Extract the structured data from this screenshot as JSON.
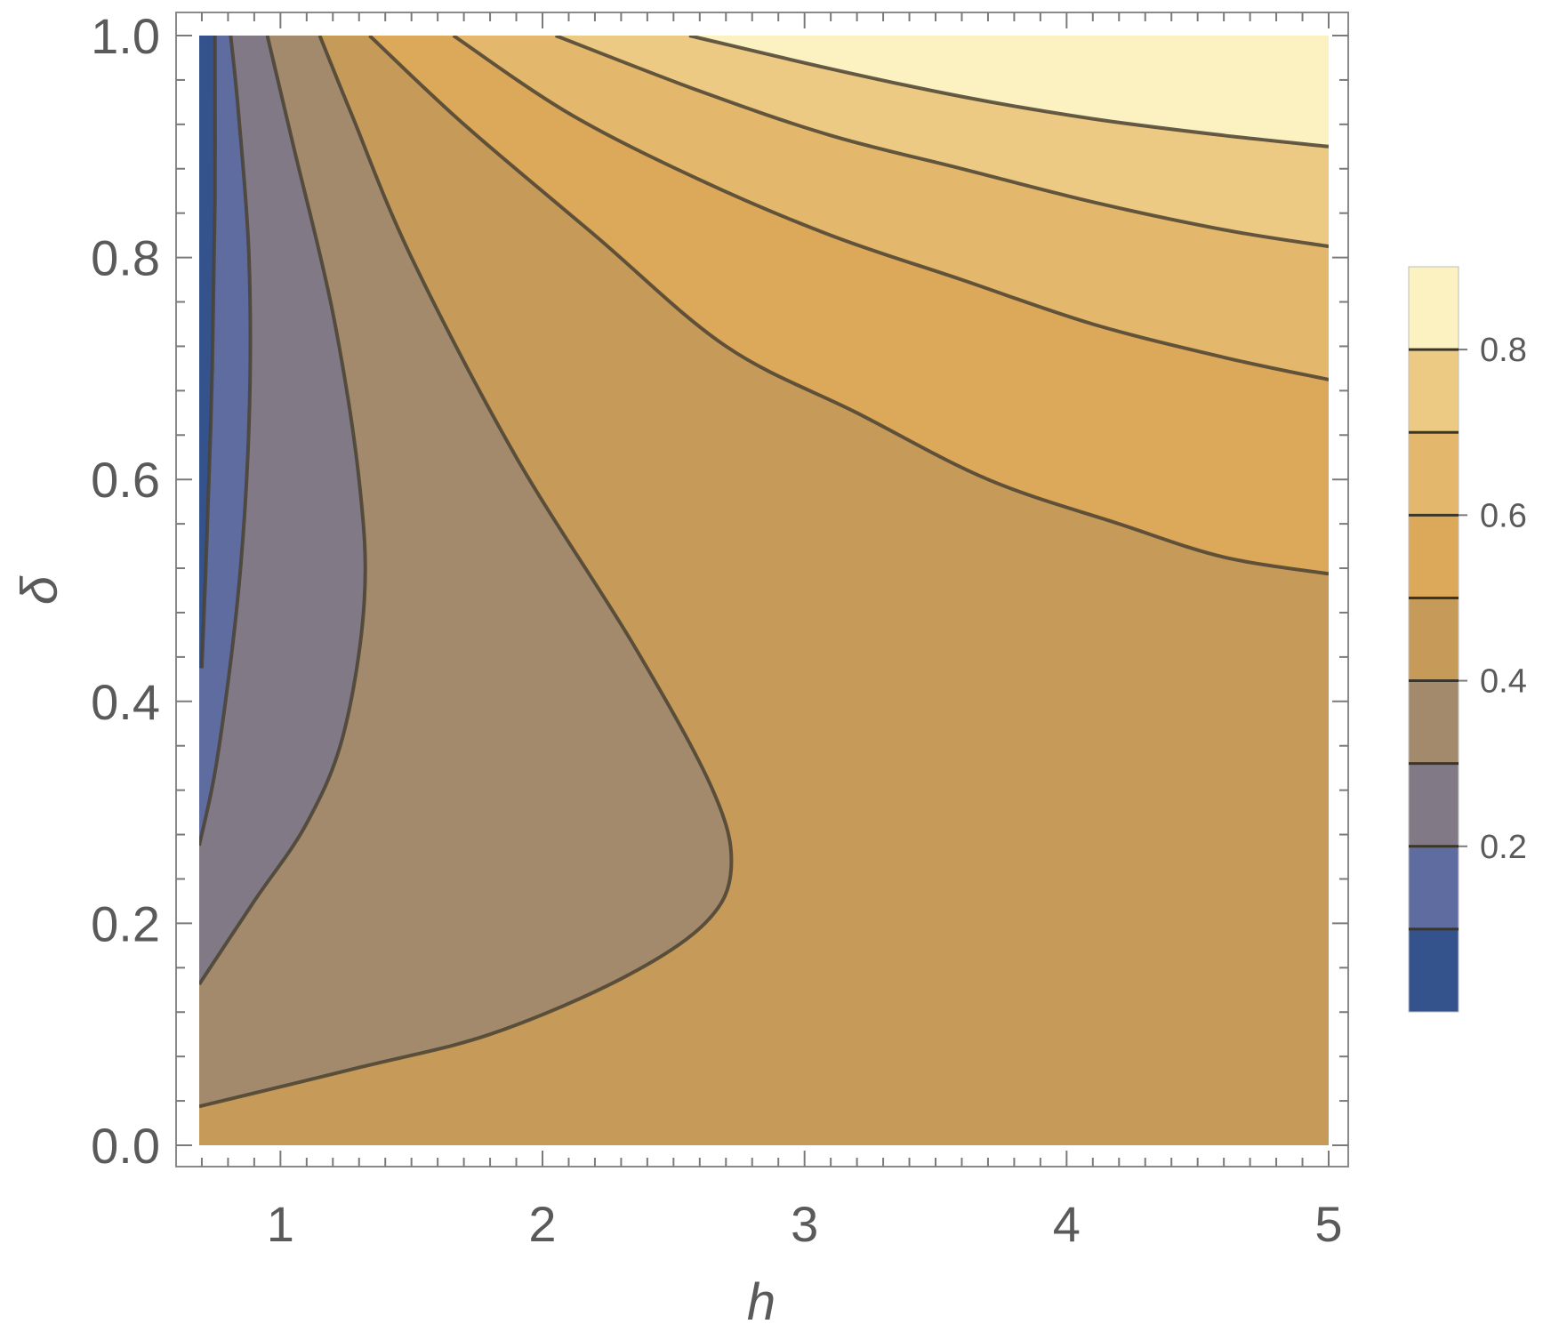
{
  "chart_data": {
    "type": "heatmap",
    "subtype": "contour",
    "title": "",
    "xlabel": "h",
    "ylabel": "δ",
    "xlim": [
      0.69,
      5
    ],
    "ylim": [
      0,
      1
    ],
    "x_ticks": [
      "1",
      "2",
      "3",
      "4",
      "5"
    ],
    "y_ticks": [
      "0.0",
      "0.2",
      "0.4",
      "0.6",
      "0.8",
      "1.0"
    ],
    "legend": {
      "placement": "right",
      "range": [
        0,
        0.9
      ],
      "tick_labels": [
        "0.2",
        "0.4",
        "0.6",
        "0.8"
      ],
      "levels": [
        0.1,
        0.2,
        0.3,
        0.4,
        0.5,
        0.6,
        0.7,
        0.8
      ],
      "band_colors": [
        "#34528c",
        "#5f6ca0",
        "#817a86",
        "#a38a6d",
        "#c69b5a",
        "#dca85a",
        "#e3b86c",
        "#ecca84",
        "#fcf2c1"
      ]
    },
    "contours": [
      {
        "level": 0.1,
        "points": [
          [
            0.7,
            0.43
          ],
          [
            0.72,
            0.55
          ],
          [
            0.74,
            0.7
          ],
          [
            0.75,
            0.85
          ],
          [
            0.75,
            1.0
          ]
        ]
      },
      {
        "level": 0.2,
        "points": [
          [
            0.69,
            0.27
          ],
          [
            0.76,
            0.35
          ],
          [
            0.84,
            0.5
          ],
          [
            0.88,
            0.65
          ],
          [
            0.88,
            0.8
          ],
          [
            0.84,
            0.93
          ],
          [
            0.81,
            1.0
          ]
        ]
      },
      {
        "level": 0.3,
        "points": [
          [
            0.69,
            0.145
          ],
          [
            0.9,
            0.22
          ],
          [
            1.1,
            0.29
          ],
          [
            1.24,
            0.37
          ],
          [
            1.32,
            0.49
          ],
          [
            1.3,
            0.6
          ],
          [
            1.2,
            0.75
          ],
          [
            1.05,
            0.9
          ],
          [
            0.95,
            1.0
          ]
        ]
      },
      {
        "level": 0.4,
        "points": [
          [
            0.69,
            0.035
          ],
          [
            1.3,
            0.07
          ],
          [
            1.8,
            0.1
          ],
          [
            2.3,
            0.15
          ],
          [
            2.62,
            0.2
          ],
          [
            2.72,
            0.25
          ],
          [
            2.65,
            0.32
          ],
          [
            2.35,
            0.45
          ],
          [
            1.9,
            0.62
          ],
          [
            1.5,
            0.8
          ],
          [
            1.27,
            0.93
          ],
          [
            1.15,
            1.0
          ]
        ]
      },
      {
        "level": 0.5,
        "points": [
          [
            1.34,
            1.0
          ],
          [
            1.7,
            0.92
          ],
          [
            2.2,
            0.82
          ],
          [
            2.7,
            0.72
          ],
          [
            3.2,
            0.66
          ],
          [
            3.7,
            0.6
          ],
          [
            4.2,
            0.56
          ],
          [
            4.6,
            0.53
          ],
          [
            5.0,
            0.515
          ]
        ]
      },
      {
        "level": 0.6,
        "points": [
          [
            1.66,
            1.0
          ],
          [
            2.1,
            0.93
          ],
          [
            2.6,
            0.87
          ],
          [
            3.1,
            0.82
          ],
          [
            3.6,
            0.78
          ],
          [
            4.1,
            0.74
          ],
          [
            4.6,
            0.71
          ],
          [
            5.0,
            0.69
          ]
        ]
      },
      {
        "level": 0.7,
        "points": [
          [
            2.05,
            1.0
          ],
          [
            2.6,
            0.95
          ],
          [
            3.1,
            0.91
          ],
          [
            3.6,
            0.88
          ],
          [
            4.1,
            0.85
          ],
          [
            4.6,
            0.825
          ],
          [
            5.0,
            0.81
          ]
        ]
      },
      {
        "level": 0.8,
        "points": [
          [
            2.56,
            1.0
          ],
          [
            3.1,
            0.97
          ],
          [
            3.6,
            0.945
          ],
          [
            4.1,
            0.925
          ],
          [
            4.6,
            0.91
          ],
          [
            5.0,
            0.9
          ]
        ]
      }
    ]
  }
}
